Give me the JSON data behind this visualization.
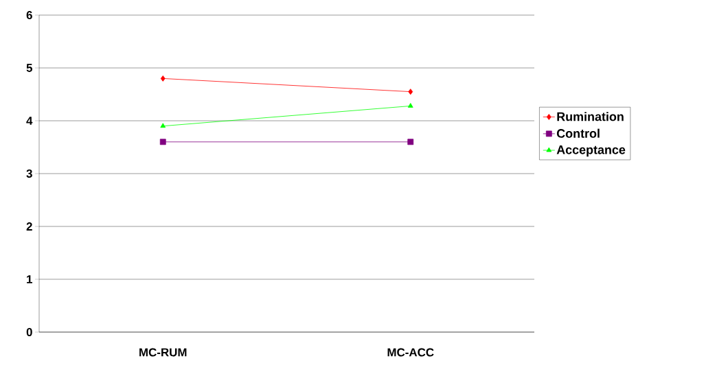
{
  "chart_data": {
    "type": "line",
    "categories": [
      "MC-RUM",
      "MC-ACC"
    ],
    "series": [
      {
        "name": "Rumination",
        "color": "#ff0000",
        "marker": "diamond",
        "values": [
          4.8,
          4.55
        ]
      },
      {
        "name": "Control",
        "color": "#800080",
        "marker": "square",
        "values": [
          3.6,
          3.6
        ]
      },
      {
        "name": "Acceptance",
        "color": "#00ff00",
        "marker": "triangle",
        "values": [
          3.9,
          4.28
        ]
      }
    ],
    "ylim": [
      0,
      6
    ],
    "yticks": [
      0,
      1,
      2,
      3,
      4,
      5,
      6
    ],
    "grid": "y",
    "legend": "right",
    "line_style": "solid"
  }
}
